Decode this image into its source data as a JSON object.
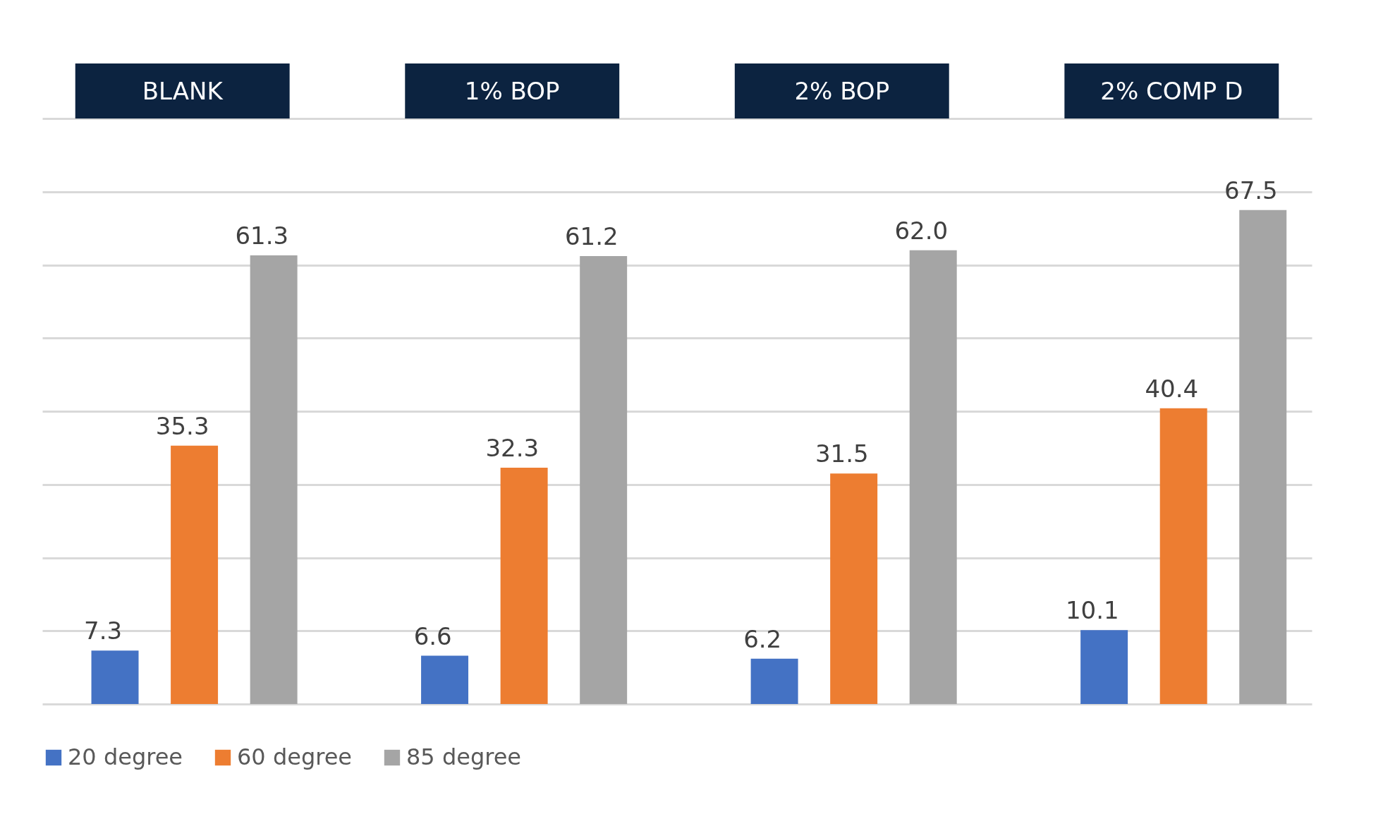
{
  "chart_data": {
    "type": "bar",
    "categories": [
      "BLANK",
      "1% BOP",
      "2% BOP",
      "2% COMP D"
    ],
    "series": [
      {
        "name": "20 degree",
        "color": "#4472c4",
        "values": [
          7.3,
          6.6,
          6.2,
          10.1
        ],
        "value_labels": [
          "7.3",
          "6.6",
          "6.2",
          "10.1"
        ]
      },
      {
        "name": "60 degree",
        "color": "#ed7d31",
        "values": [
          35.3,
          32.3,
          31.5,
          40.4
        ],
        "value_labels": [
          "35.3",
          "32.3",
          "31.5",
          "40.4"
        ]
      },
      {
        "name": "85 degree",
        "color": "#a5a5a5",
        "values": [
          61.3,
          61.2,
          62.0,
          67.5
        ],
        "value_labels": [
          "61.3",
          "61.2",
          "62.0",
          "67.5"
        ]
      }
    ],
    "ylim": [
      0,
      80
    ],
    "yticks": [
      {
        "value": 0,
        "label": null
      },
      {
        "value": 10,
        "label": null
      },
      {
        "value": 20,
        "label": null
      },
      {
        "value": 30,
        "label": null
      },
      {
        "value": 40,
        "label": null
      },
      {
        "value": 50,
        "label": null
      },
      {
        "value": 60,
        "label": null
      },
      {
        "value": 70,
        "label": null
      },
      {
        "value": 80,
        "label": null
      }
    ],
    "tick_labels": "x",
    "grid": "y",
    "legend": "bottom"
  }
}
